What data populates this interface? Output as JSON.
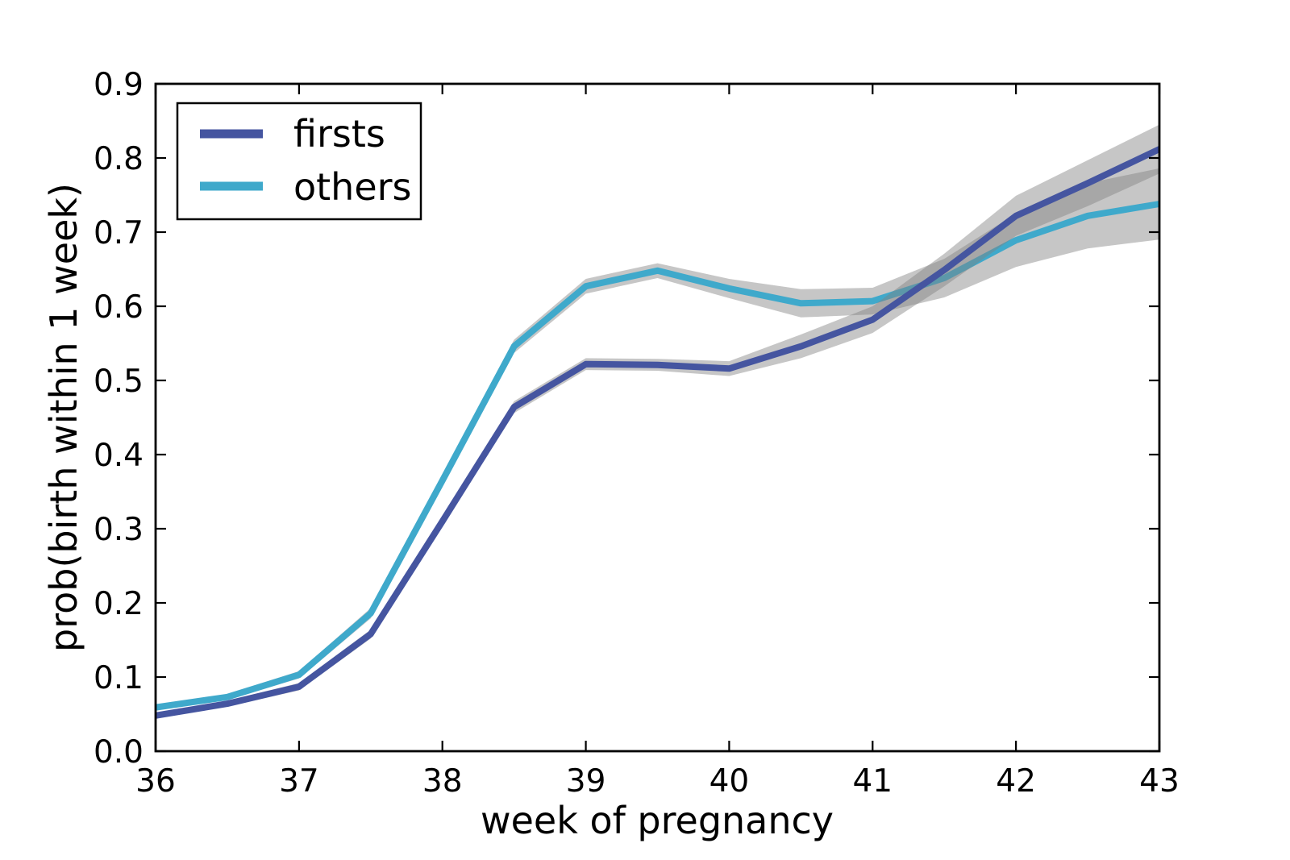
{
  "chart_data": {
    "type": "line",
    "title": "",
    "xlabel": "week of pregnancy",
    "ylabel": "prob(birth within 1 week)",
    "xlim": [
      36,
      43
    ],
    "ylim": [
      0.0,
      0.9
    ],
    "xticks": [
      36,
      37,
      38,
      39,
      40,
      41,
      42,
      43
    ],
    "xtick_labels": [
      "36",
      "37",
      "38",
      "39",
      "40",
      "41",
      "42",
      "43"
    ],
    "yticks": [
      0.0,
      0.1,
      0.2,
      0.3,
      0.4,
      0.5,
      0.6,
      0.7,
      0.8,
      0.9
    ],
    "ytick_labels": [
      "0.0",
      "0.1",
      "0.2",
      "0.3",
      "0.4",
      "0.5",
      "0.6",
      "0.7",
      "0.8",
      "0.9"
    ],
    "grid": false,
    "legend_position": "upper left",
    "x": [
      36,
      36.5,
      37,
      37.5,
      38,
      38.5,
      39,
      39.5,
      40,
      40.5,
      41,
      41.5,
      42,
      42.5,
      43
    ],
    "series": [
      {
        "name": "firsts",
        "color": "#4555a0",
        "values": [
          0.048,
          0.064,
          0.087,
          0.158,
          0.31,
          0.464,
          0.522,
          0.521,
          0.516,
          0.546,
          0.582,
          0.649,
          0.722,
          0.766,
          0.812
        ],
        "band_halfwidth": [
          0.004,
          0.004,
          0.005,
          0.006,
          0.007,
          0.008,
          0.008,
          0.008,
          0.01,
          0.016,
          0.018,
          0.022,
          0.027,
          0.031,
          0.033
        ]
      },
      {
        "name": "others",
        "color": "#3fa9cb",
        "values": [
          0.059,
          0.073,
          0.103,
          0.186,
          0.365,
          0.546,
          0.627,
          0.648,
          0.624,
          0.604,
          0.607,
          0.638,
          0.689,
          0.722,
          0.738
        ],
        "band_halfwidth": [
          0.004,
          0.004,
          0.005,
          0.007,
          0.008,
          0.009,
          0.01,
          0.01,
          0.013,
          0.019,
          0.018,
          0.026,
          0.036,
          0.044,
          0.048
        ]
      }
    ],
    "band_color": "#808080",
    "band_opacity": 0.45,
    "axis_color": "#000000"
  }
}
